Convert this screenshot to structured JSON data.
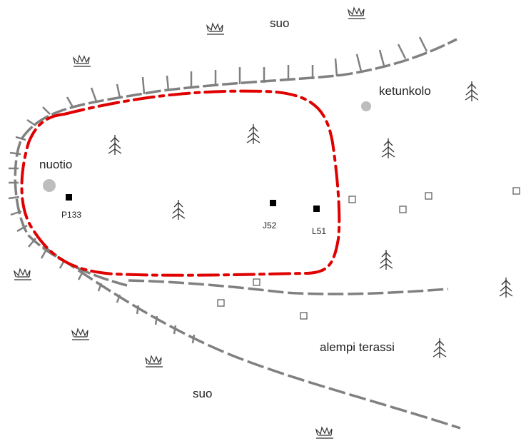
{
  "labels": {
    "suo_top": "suo",
    "suo_bottom": "suo",
    "ketunkolo": "ketunkolo",
    "nuotio": "nuotio",
    "alempi_terassi": "alempi terassi"
  },
  "finds": {
    "P133": "P133",
    "J52": "J52",
    "L51": "L51"
  },
  "colors": {
    "outline": "#e00000",
    "terrace": "#808080",
    "marker": "#000000",
    "hearth": "#bdbdbd",
    "symbol": "#333333"
  },
  "icons": [
    "marsh-symbol",
    "tree-symbol",
    "find-marker",
    "test-pit-marker",
    "hearth-marker"
  ]
}
